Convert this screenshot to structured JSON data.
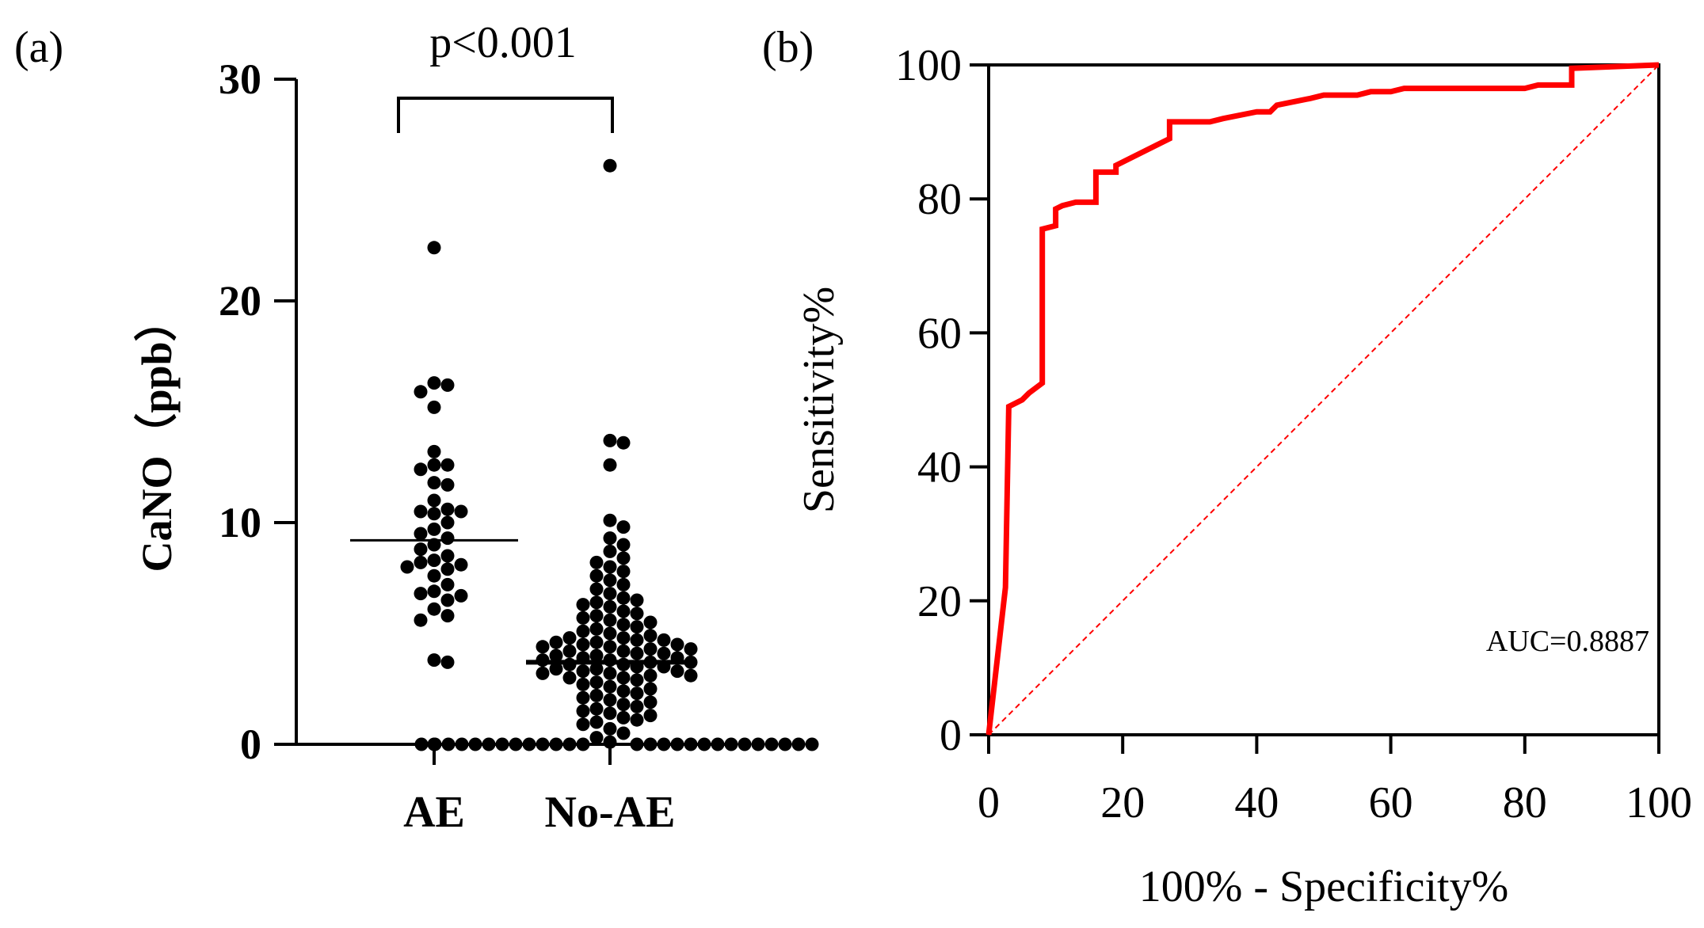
{
  "chart_data": [
    {
      "panel": "(a)",
      "type": "scatter",
      "subtype": "dot-plot",
      "ylabel": "CaNO（ppb）",
      "ylim": [
        0,
        30
      ],
      "yticks": [
        "0",
        "10",
        "20",
        "30"
      ],
      "categories": [
        "AE",
        "No-AE"
      ],
      "annotation": "p<0.001",
      "series": [
        {
          "category": "AE",
          "mean": 9.2,
          "points": [
            22.4,
            16.3,
            16.2,
            15.9,
            15.2,
            13.2,
            12.6,
            12.6,
            12.4,
            11.8,
            11.7,
            11.0,
            10.6,
            10.5,
            10.5,
            10.4,
            10.0,
            9.7,
            9.5,
            9.3,
            9.0,
            8.8,
            8.5,
            8.3,
            8.2,
            8.1,
            8.0,
            7.9,
            7.6,
            7.2,
            6.9,
            6.8,
            6.7,
            6.5,
            6.1,
            5.8,
            5.6,
            3.8,
            3.7,
            0.0
          ]
        },
        {
          "category": "No-AE",
          "mean": 3.7,
          "points": [
            26.1,
            13.7,
            13.6,
            12.6,
            10.1,
            9.8,
            9.3,
            9.0,
            8.7,
            8.4,
            8.2,
            8.0,
            7.8,
            7.6,
            7.4,
            7.2,
            7.0,
            6.8,
            6.6,
            6.5,
            6.4,
            6.3,
            6.2,
            6.0,
            5.9,
            5.8,
            5.7,
            5.6,
            5.5,
            5.4,
            5.3,
            5.2,
            5.1,
            5.0,
            4.9,
            4.8,
            4.8,
            4.7,
            4.7,
            4.6,
            4.6,
            4.5,
            4.5,
            4.4,
            4.4,
            4.3,
            4.3,
            4.2,
            4.2,
            4.1,
            4.1,
            4.0,
            4.0,
            3.9,
            3.9,
            3.8,
            3.8,
            3.7,
            3.7,
            3.6,
            3.6,
            3.5,
            3.5,
            3.4,
            3.4,
            3.3,
            3.3,
            3.2,
            3.2,
            3.1,
            3.1,
            3.0,
            3.0,
            2.9,
            2.8,
            2.7,
            2.6,
            2.5,
            2.4,
            2.3,
            2.2,
            2.1,
            2.0,
            1.9,
            1.8,
            1.7,
            1.6,
            1.5,
            1.4,
            1.3,
            1.2,
            1.1,
            1.0,
            0.9,
            0.7,
            0.5,
            0.3,
            0.1,
            0,
            0,
            0,
            0,
            0,
            0,
            0,
            0,
            0,
            0,
            0,
            0,
            0,
            0,
            0,
            0,
            0,
            0,
            0,
            0,
            0,
            0,
            0,
            0,
            0,
            0,
            0
          ]
        }
      ],
      "colors": {
        "points": "#000000"
      }
    },
    {
      "panel": "(b)",
      "type": "line",
      "subtype": "roc-curve",
      "xlabel": "100% - Specificity%",
      "ylabel": "Sensitivity%",
      "xlim": [
        0,
        100
      ],
      "ylim": [
        0,
        100
      ],
      "xticks": [
        "0",
        "20",
        "40",
        "60",
        "80",
        "100"
      ],
      "yticks": [
        "0",
        "20",
        "40",
        "60",
        "80",
        "100"
      ],
      "annotation": "AUC=0.8887",
      "series": [
        {
          "color": "#ff0000",
          "x": [
            0,
            2.5,
            3,
            5,
            6,
            8,
            8,
            10,
            10,
            11,
            13,
            16,
            16,
            19,
            19,
            25,
            27,
            27,
            33,
            35,
            40,
            42,
            43,
            48,
            50,
            55,
            57,
            60,
            62,
            80,
            82,
            87,
            87,
            100
          ],
          "y": [
            0,
            22,
            49,
            50,
            51,
            52.5,
            75.5,
            76,
            78.5,
            79,
            79.5,
            79.5,
            84,
            84,
            85,
            88,
            89,
            91.5,
            91.5,
            92,
            93,
            93,
            94,
            95,
            95.5,
            95.5,
            96,
            96,
            96.5,
            96.5,
            97,
            97,
            99.5,
            100
          ]
        },
        {
          "style": "dashed",
          "color": "#ff0000",
          "x": [
            0,
            100
          ],
          "y": [
            0,
            100
          ]
        }
      ]
    }
  ]
}
